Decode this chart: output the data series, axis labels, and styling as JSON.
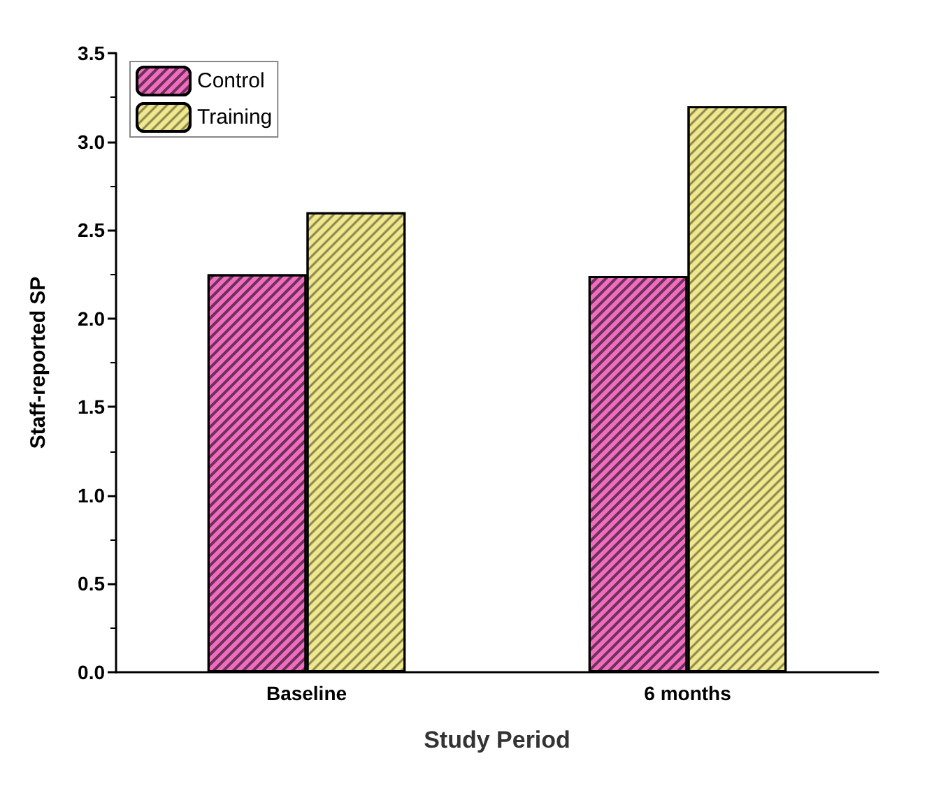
{
  "chart_data": {
    "type": "bar",
    "xlabel": "Study Period",
    "ylabel": "Staff-reported SP",
    "categories": [
      "Baseline",
      "6 months"
    ],
    "series": [
      {
        "name": "Control",
        "color": "#f06cc0",
        "values": [
          2.25,
          2.24
        ]
      },
      {
        "name": "Training",
        "color": "#f0e88c",
        "values": [
          2.6,
          3.2
        ]
      }
    ],
    "ylim": [
      0,
      3.5
    ],
    "yticks": [
      {
        "value": 0,
        "label": "0.0"
      },
      {
        "value": 0.5,
        "label": "0.5"
      },
      {
        "value": 1,
        "label": "1.0"
      },
      {
        "value": 1.5,
        "label": "1.5"
      },
      {
        "value": 2,
        "label": "2.0"
      },
      {
        "value": 2.5,
        "label": "2.5"
      },
      {
        "value": 3,
        "label": "3.0"
      },
      {
        "value": 3.5,
        "label": "3.5"
      }
    ],
    "grid": false,
    "legend": "top left"
  }
}
